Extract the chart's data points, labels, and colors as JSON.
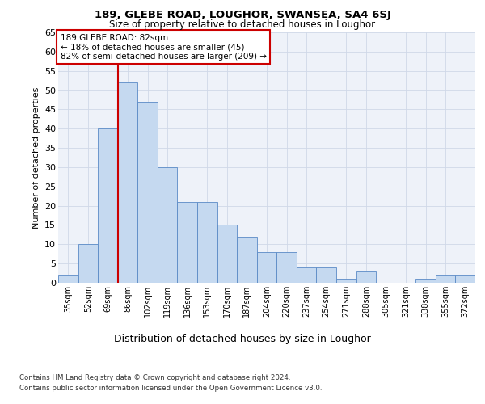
{
  "title1": "189, GLEBE ROAD, LOUGHOR, SWANSEA, SA4 6SJ",
  "title2": "Size of property relative to detached houses in Loughor",
  "xlabel": "Distribution of detached houses by size in Loughor",
  "ylabel": "Number of detached properties",
  "categories": [
    "35sqm",
    "52sqm",
    "69sqm",
    "86sqm",
    "102sqm",
    "119sqm",
    "136sqm",
    "153sqm",
    "170sqm",
    "187sqm",
    "204sqm",
    "220sqm",
    "237sqm",
    "254sqm",
    "271sqm",
    "288sqm",
    "305sqm",
    "321sqm",
    "338sqm",
    "355sqm",
    "372sqm"
  ],
  "values": [
    2,
    10,
    40,
    52,
    47,
    30,
    21,
    21,
    15,
    12,
    8,
    8,
    4,
    4,
    1,
    3,
    0,
    0,
    1,
    2,
    2
  ],
  "bar_color": "#c5d9f0",
  "bar_edge_color": "#5a8ac6",
  "grid_color": "#d0d8e8",
  "background_color": "#eef2f9",
  "annotation_box_color": "#ffffff",
  "annotation_box_edge": "#cc0000",
  "annotation_line_color": "#cc0000",
  "annotation_text_line1": "189 GLEBE ROAD: 82sqm",
  "annotation_text_line2": "← 18% of detached houses are smaller (45)",
  "annotation_text_line3": "82% of semi-detached houses are larger (209) →",
  "property_line_x": 2.5,
  "ylim": [
    0,
    65
  ],
  "yticks": [
    0,
    5,
    10,
    15,
    20,
    25,
    30,
    35,
    40,
    45,
    50,
    55,
    60,
    65
  ],
  "footnote1": "Contains HM Land Registry data © Crown copyright and database right 2024.",
  "footnote2": "Contains public sector information licensed under the Open Government Licence v3.0."
}
